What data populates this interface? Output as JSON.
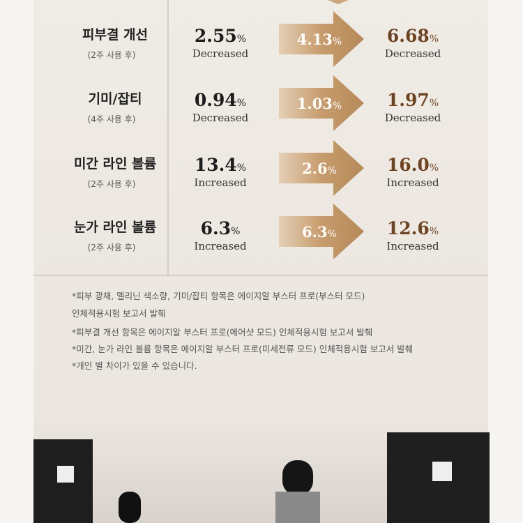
{
  "rows": [
    {
      "label": "피부결 개선",
      "sub": "(2주 사용 후)",
      "before": "2.55",
      "before_unit": "%",
      "before_desc": "Decreased",
      "arrow": "4.13",
      "arrow_unit": "%",
      "after": "6.68",
      "after_unit": "%",
      "after_desc": "Decreased"
    },
    {
      "label": "기미/잡티",
      "sub": "(4주 사용 후)",
      "before": "0.94",
      "before_unit": "%",
      "before_desc": "Decreased",
      "arrow": "1.03",
      "arrow_unit": "%",
      "after": "1.97",
      "after_unit": "%",
      "after_desc": "Decreased"
    },
    {
      "label": "미간 라인 볼륨",
      "sub": "(2주 사용 후)",
      "before": "13.4",
      "before_unit": "%",
      "before_desc": "Increased",
      "arrow": "2.6",
      "arrow_unit": "%",
      "after": "16.0",
      "after_unit": "%",
      "after_desc": "Increased"
    },
    {
      "label": "눈가 라인 볼륨",
      "sub": "(2주 사용 후)",
      "before": "6.3",
      "before_unit": "%",
      "before_desc": "Increased",
      "arrow": "6.3",
      "arrow_unit": "%",
      "after": "12.6",
      "after_unit": "%",
      "after_desc": "Increased"
    }
  ],
  "notes": [
    "*피부 광채, 멜리닌 색소량, 기미/잡티 항목은 에이지알 부스터 프로(부스터 모드)",
    " 인체적용시험 보고서 발췌",
    "*피부결 개선 항목은 에이지알 부스터 프로(에어샷 모드) 인체적용시험 보고서 발췌",
    "*미간, 눈가 라인 볼륨 항목은 에이지알 부스터 프로(미세전류 모드) 인체적용시험 보고서 발췌",
    "*개인 별 차이가 있을 수 있습니다."
  ]
}
